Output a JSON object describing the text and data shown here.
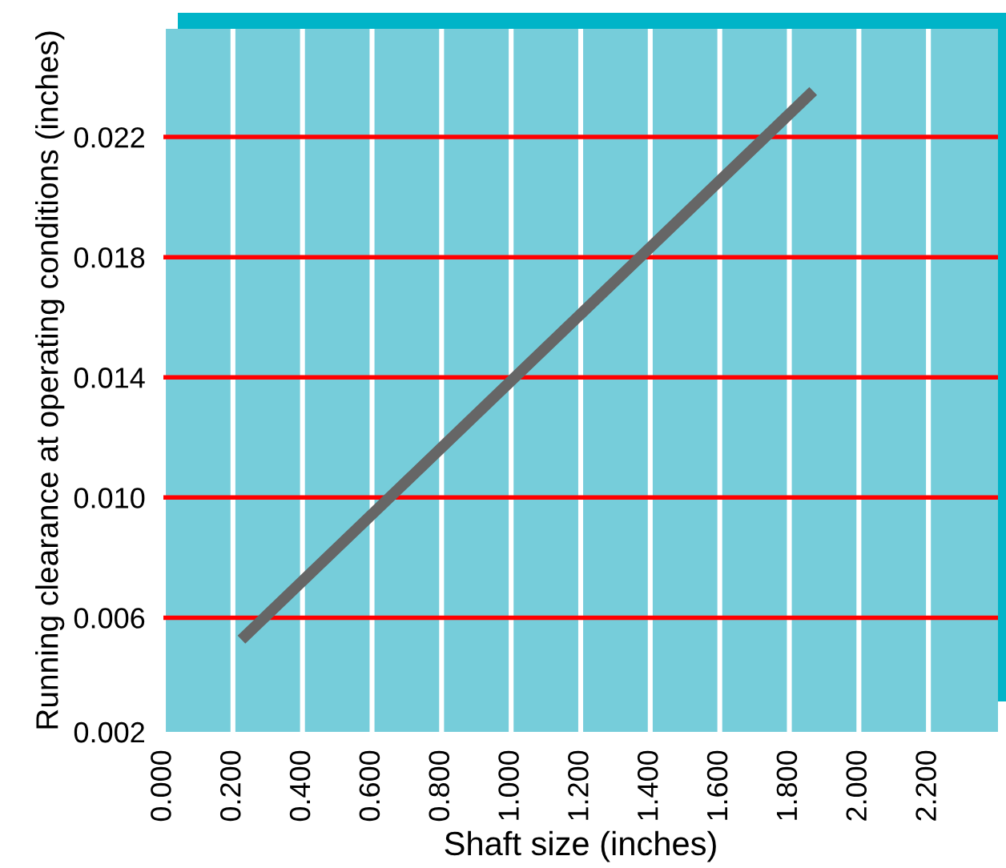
{
  "chart_data": {
    "type": "line",
    "xlabel": "Shaft size (inches)",
    "ylabel": "Running clearance at operating conditions (inches)",
    "x": [
      0.236,
      1.857
    ],
    "series": [
      {
        "color": "#666666",
        "values": [
          0.0054,
          0.0234
        ]
      }
    ],
    "xlim": [
      0,
      2.4
    ],
    "xticks": [
      {
        "value": 0,
        "label": "0.000"
      },
      {
        "value": 0.2,
        "label": "0.200"
      },
      {
        "value": 0.4,
        "label": "0.400"
      },
      {
        "value": 0.6,
        "label": "0.600"
      },
      {
        "value": 0.8,
        "label": "0.800"
      },
      {
        "value": 1.0,
        "label": "1.000"
      },
      {
        "value": 1.2,
        "label": "1.200"
      },
      {
        "value": 1.4,
        "label": "1.400"
      },
      {
        "value": 1.6,
        "label": "1.600"
      },
      {
        "value": 1.8,
        "label": "1.800"
      },
      {
        "value": 2.0,
        "label": "2.000"
      },
      {
        "value": 2.2,
        "label": "2.200"
      }
    ],
    "ylim": [
      0.0022,
      0.0256
    ],
    "yticks": [
      {
        "value": 0.0022,
        "label": "0.002"
      },
      {
        "value": 0.006,
        "label": "0.006"
      },
      {
        "value": 0.01,
        "label": "0.010"
      },
      {
        "value": 0.014,
        "label": "0.014"
      },
      {
        "value": 0.018,
        "label": "0.018"
      },
      {
        "value": 0.022,
        "label": "0.022"
      }
    ],
    "grid": true,
    "marker": "none",
    "line_style": "solid",
    "legend": false
  }
}
